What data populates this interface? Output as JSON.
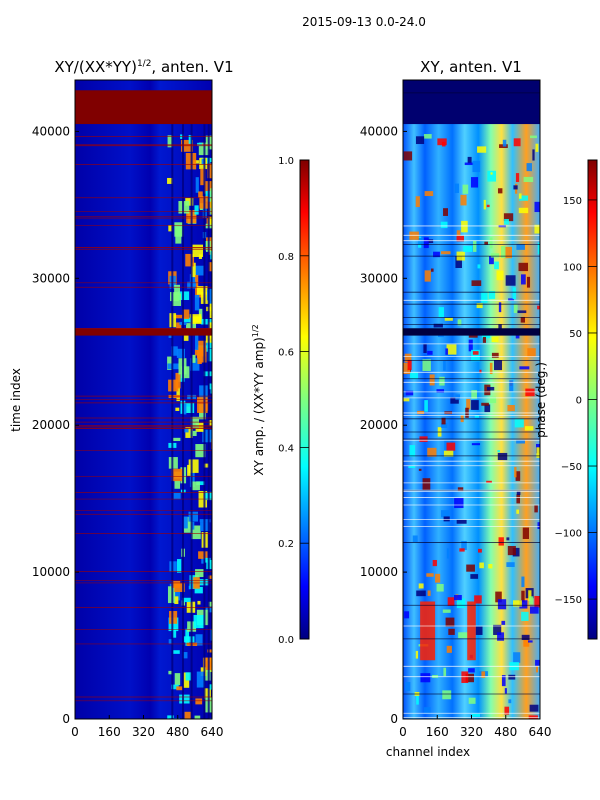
{
  "figure": {
    "suptitle": "2015-09-13 0.0-24.0"
  },
  "chart_data": [
    {
      "type": "heatmap",
      "title": "XY/(XX*YY)",
      "title_exponent": "1/2",
      "title_suffix": ", anten. V1",
      "xlabel": "",
      "ylabel": "time index",
      "xlim": [
        0,
        640
      ],
      "ylim": [
        0,
        43500
      ],
      "xticks": [
        0,
        160,
        320,
        480,
        640
      ],
      "yticks": [
        0,
        10000,
        20000,
        30000,
        40000
      ],
      "colormap": "jet",
      "colorbar": {
        "label": "XY amp. / (XX*YY amp)",
        "label_exponent": "1/2",
        "range": [
          0.0,
          1.0
        ],
        "ticks": [
          "0.0",
          "0.2",
          "0.4",
          "0.6",
          "0.8",
          "1.0"
        ]
      },
      "flagged_rows": [
        40500,
        41000,
        41500,
        42000,
        26200,
        26500
      ]
    },
    {
      "type": "heatmap",
      "title": "XY, anten. V1",
      "xlabel": "channel index",
      "ylabel": "",
      "xlim": [
        0,
        640
      ],
      "ylim": [
        0,
        43500
      ],
      "xticks": [
        0,
        160,
        320,
        480,
        640
      ],
      "yticks": [
        0,
        10000,
        20000,
        30000,
        40000
      ],
      "colormap": "jet",
      "colorbar": {
        "label": "phase (deg.)",
        "range": [
          -180,
          180
        ],
        "ticks": [
          "150",
          "100",
          "50",
          "0",
          "−50",
          "−100",
          "−150"
        ]
      }
    }
  ],
  "colors": {
    "jet": [
      "#00007f",
      "#0000ff",
      "#007fff",
      "#00ffff",
      "#7fff7f",
      "#ffff00",
      "#ff7f00",
      "#ff0000",
      "#7f0000"
    ]
  }
}
